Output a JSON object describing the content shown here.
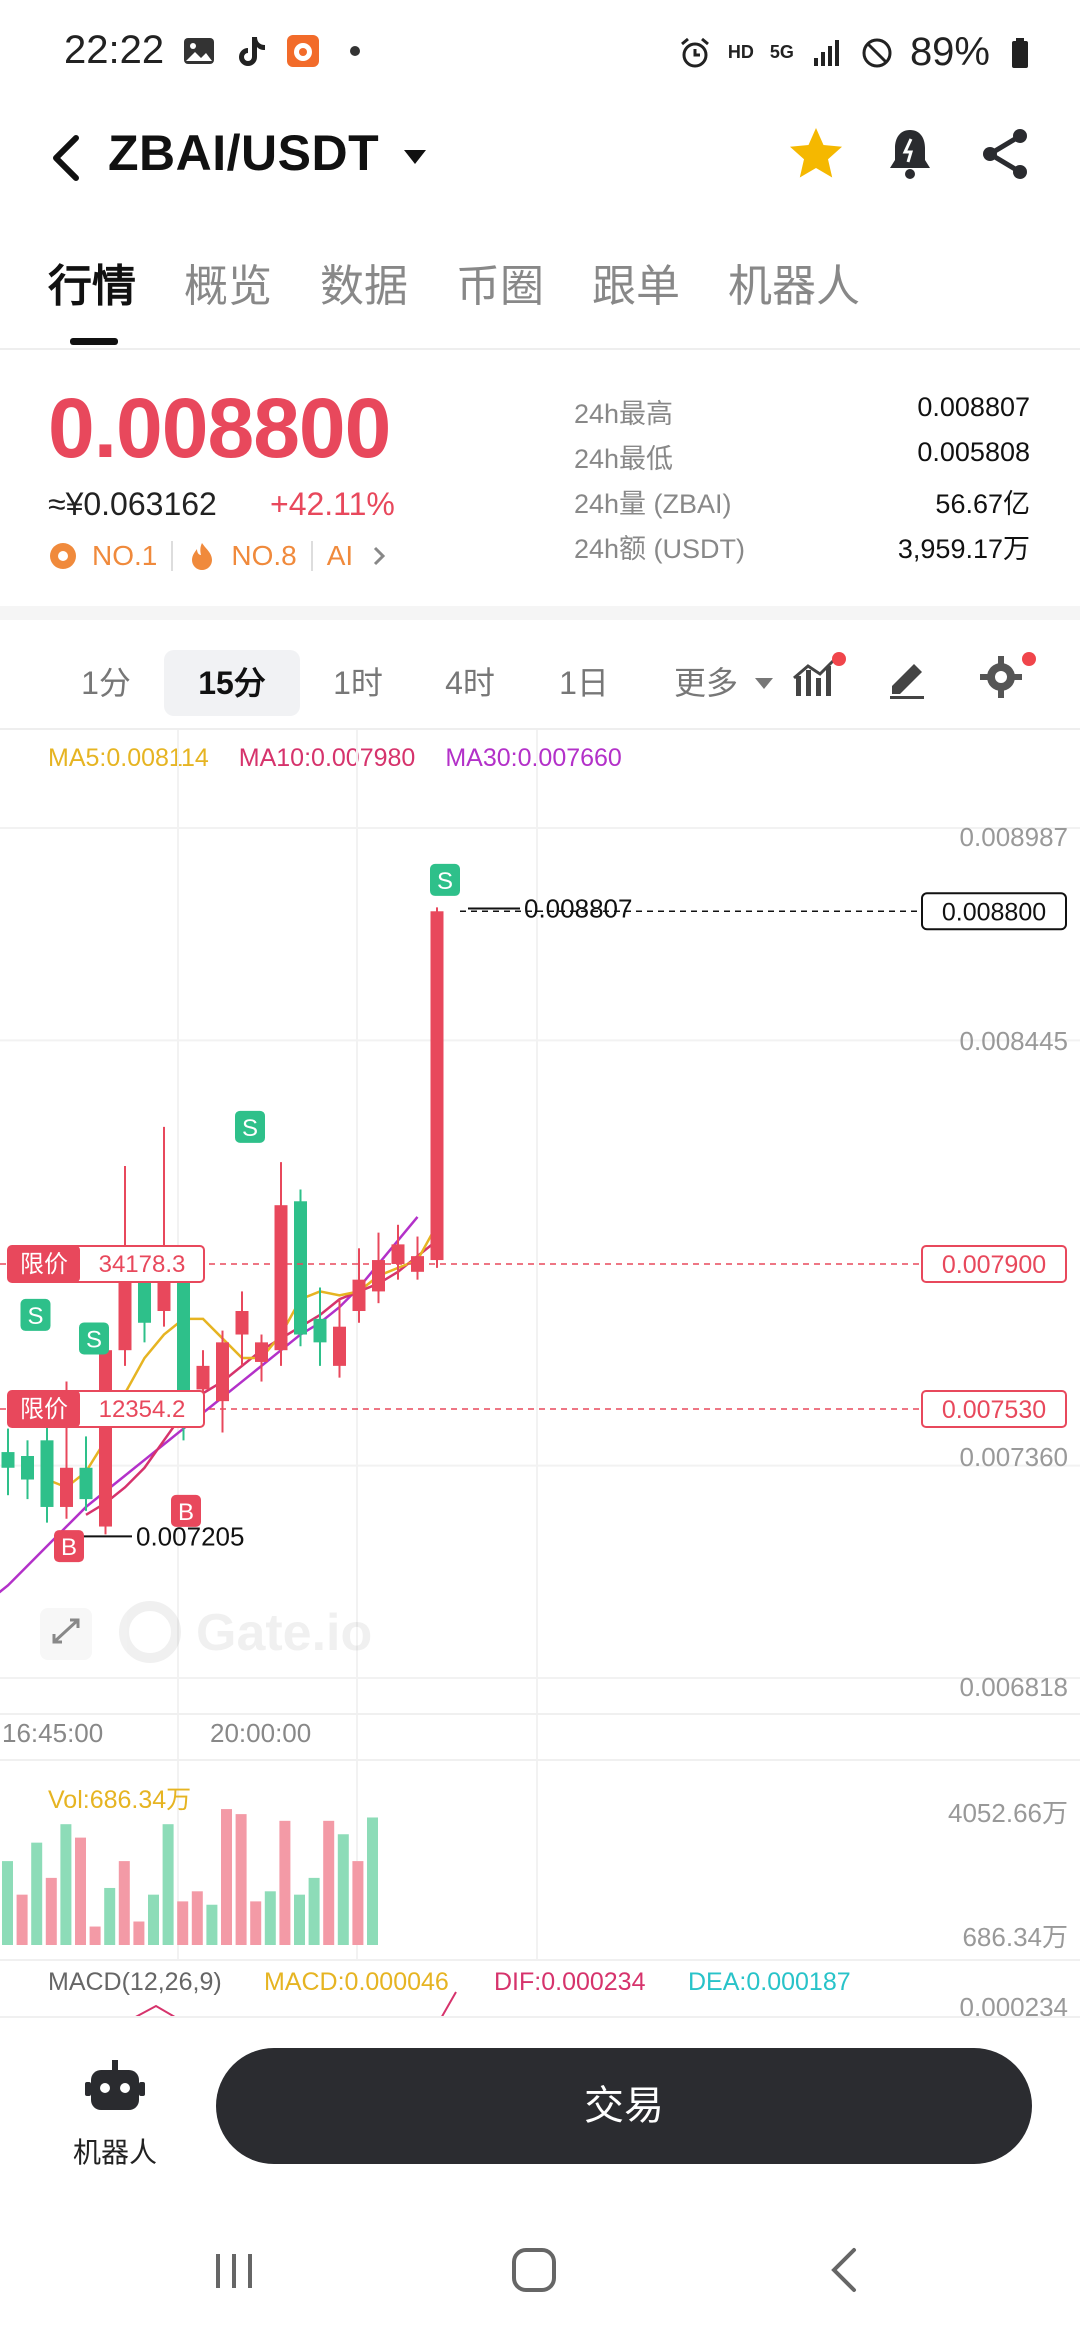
{
  "status_bar": {
    "time": "22:22",
    "net_hd": "HD",
    "net_5g": "5G",
    "battery": "89%"
  },
  "header": {
    "pair": "ZBAI/USDT",
    "icons": [
      "back-icon",
      "dropdown-caret-icon",
      "star-icon",
      "bell-icon",
      "share-icon"
    ],
    "star_color": "#f5b800"
  },
  "tabs": [
    "行情",
    "概览",
    "数据",
    "币圈",
    "跟单",
    "机器人"
  ],
  "price": {
    "last": "0.008800",
    "cny": "≈¥0.063162",
    "change": "+42.11%",
    "rank1": "NO.1",
    "rank2": "NO.8",
    "tag": "AI",
    "up_color": "#e8485c"
  },
  "stats": [
    {
      "label": "24h最高",
      "value": "0.008807"
    },
    {
      "label": "24h最低",
      "value": "0.005808"
    },
    {
      "label": "24h量 (ZBAI)",
      "value": "56.67亿"
    },
    {
      "label": "24h额 (USDT)",
      "value": "3,959.17万"
    }
  ],
  "intervals": {
    "items": [
      "1分",
      "15分",
      "1时",
      "4时",
      "1日",
      "更多"
    ],
    "active": "15分"
  },
  "ma_legend": {
    "ma5": "MA5:0.008114",
    "ma10": "MA10:0.007980",
    "ma30": "MA30:0.007660",
    "colors": {
      "ma5": "#e6b422",
      "ma10": "#d6336c",
      "ma30": "#b331c9"
    }
  },
  "chart_data": {
    "type": "candlestick",
    "price_axis": [
      "0.008987",
      "0.008445",
      "0.007360",
      "0.006818"
    ],
    "x_axis": [
      "16:45:00",
      "20:00:00"
    ],
    "high_marker": "0.008807",
    "low_marker": "0.007205",
    "last_price_tag": "0.008800",
    "orders": [
      {
        "label": "限价",
        "qty": "34178.3",
        "price": "0.007900"
      },
      {
        "label": "限价",
        "qty": "12354.2",
        "price": "0.007530"
      }
    ],
    "candles": [
      {
        "o": 0.00742,
        "c": 0.00738,
        "h": 0.00748,
        "l": 0.00731
      },
      {
        "o": 0.00741,
        "c": 0.00735,
        "h": 0.00745,
        "l": 0.0073
      },
      {
        "o": 0.00745,
        "c": 0.00728,
        "h": 0.00751,
        "l": 0.00724
      },
      {
        "o": 0.00728,
        "c": 0.00738,
        "h": 0.0076,
        "l": 0.00725
      },
      {
        "o": 0.00738,
        "c": 0.0073,
        "h": 0.00746,
        "l": 0.00727
      },
      {
        "o": 0.00723,
        "c": 0.00768,
        "h": 0.00772,
        "l": 0.00721
      },
      {
        "o": 0.00768,
        "c": 0.0079,
        "h": 0.00815,
        "l": 0.00764
      },
      {
        "o": 0.00788,
        "c": 0.00775,
        "h": 0.00794,
        "l": 0.0077
      },
      {
        "o": 0.00778,
        "c": 0.00788,
        "h": 0.00825,
        "l": 0.00774
      },
      {
        "o": 0.0079,
        "c": 0.00757,
        "h": 0.00794,
        "l": 0.00745
      },
      {
        "o": 0.00758,
        "c": 0.00764,
        "h": 0.00768,
        "l": 0.00755
      },
      {
        "o": 0.00755,
        "c": 0.0077,
        "h": 0.00773,
        "l": 0.00747
      },
      {
        "o": 0.00772,
        "c": 0.00778,
        "h": 0.00783,
        "l": 0.00764
      },
      {
        "o": 0.00765,
        "c": 0.0077,
        "h": 0.00772,
        "l": 0.0076
      },
      {
        "o": 0.00768,
        "c": 0.00805,
        "h": 0.00816,
        "l": 0.00764
      },
      {
        "o": 0.00806,
        "c": 0.00772,
        "h": 0.00809,
        "l": 0.00769
      },
      {
        "o": 0.00776,
        "c": 0.0077,
        "h": 0.00784,
        "l": 0.00764
      },
      {
        "o": 0.00764,
        "c": 0.00774,
        "h": 0.00781,
        "l": 0.00761
      },
      {
        "o": 0.00778,
        "c": 0.00786,
        "h": 0.00794,
        "l": 0.00775
      },
      {
        "o": 0.00783,
        "c": 0.00791,
        "h": 0.00798,
        "l": 0.0078
      },
      {
        "o": 0.0079,
        "c": 0.00795,
        "h": 0.008,
        "l": 0.00786
      },
      {
        "o": 0.00788,
        "c": 0.00792,
        "h": 0.00797,
        "l": 0.00786
      },
      {
        "o": 0.00791,
        "c": 0.0088,
        "h": 0.00881,
        "l": 0.00789
      }
    ],
    "signals": [
      {
        "text": "S",
        "i": 1,
        "price": 0.00777,
        "type": "sell"
      },
      {
        "text": "S",
        "i": 4,
        "price": 0.00771,
        "type": "sell"
      },
      {
        "text": "S",
        "i": 12,
        "price": 0.00825,
        "type": "sell"
      },
      {
        "text": "S",
        "i": 22,
        "price": 0.00888,
        "type": "sell"
      },
      {
        "text": "B",
        "i": 2,
        "price": 0.00718,
        "type": "buy"
      },
      {
        "text": "B",
        "i": 8,
        "price": 0.00727,
        "type": "buy"
      }
    ],
    "ma5": [
      0.00735,
      0.00733,
      0.00737,
      0.00745,
      0.00757,
      0.00766,
      0.00772,
      0.00776,
      0.00776,
      0.00771,
      0.00766,
      0.00766,
      0.00772,
      0.00781,
      0.00783,
      0.00782,
      0.00783,
      0.00787,
      0.00789,
      0.00791,
      0.008
    ],
    "ma10": [
      0.00726,
      0.00729,
      0.00733,
      0.00738,
      0.00745,
      0.00752,
      0.00757,
      0.0076,
      0.00764,
      0.00768,
      0.00771,
      0.00774,
      0.00777,
      0.00781,
      0.00783,
      0.00785,
      0.00788,
      0.00792,
      0.00796
    ],
    "ma30": [
      0.00704,
      0.00708,
      0.00713,
      0.00718,
      0.00723,
      0.00728,
      0.00732,
      0.00736,
      0.0074,
      0.00744,
      0.00748,
      0.00752,
      0.00756,
      0.0076,
      0.00764,
      0.00768,
      0.00772,
      0.00775,
      0.00779,
      0.00784,
      0.0079,
      0.00796,
      0.00802
    ],
    "volume": {
      "label": "Vol:686.34万",
      "axis_max": "4052.66万",
      "axis_cur": "686.34万",
      "values": [
        2500,
        1500,
        3050,
        2000,
        3600,
        3200,
        550,
        1700,
        2500,
        700,
        1500,
        3600,
        1300,
        1600,
        1200,
        4050,
        3900,
        1300,
        1600,
        3700,
        1500,
        2000,
        3700,
        3300,
        2500,
        3800
      ],
      "up": [
        false,
        true,
        false,
        true,
        false,
        true,
        true,
        false,
        true,
        true,
        false,
        false,
        true,
        true,
        false,
        true,
        true,
        true,
        false,
        true,
        false,
        false,
        true,
        false,
        true,
        false
      ]
    },
    "macd": {
      "label": "MACD(12,26,9)",
      "macd": "MACD:0.000046",
      "dif": "DIF:0.000234",
      "dea": "DEA:0.000187",
      "axis": "0.000234",
      "colors": {
        "macd": "#e6b422",
        "dif": "#d6336c",
        "dea": "#28c3c9"
      }
    },
    "watermark": "Gate.io",
    "colors": {
      "up": "#e8485c",
      "down": "#2ec08a"
    }
  },
  "bottom": {
    "robot_label": "机器人",
    "trade_label": "交易"
  },
  "nav_icons": [
    "recent-apps-icon",
    "home-icon",
    "back-nav-icon"
  ]
}
